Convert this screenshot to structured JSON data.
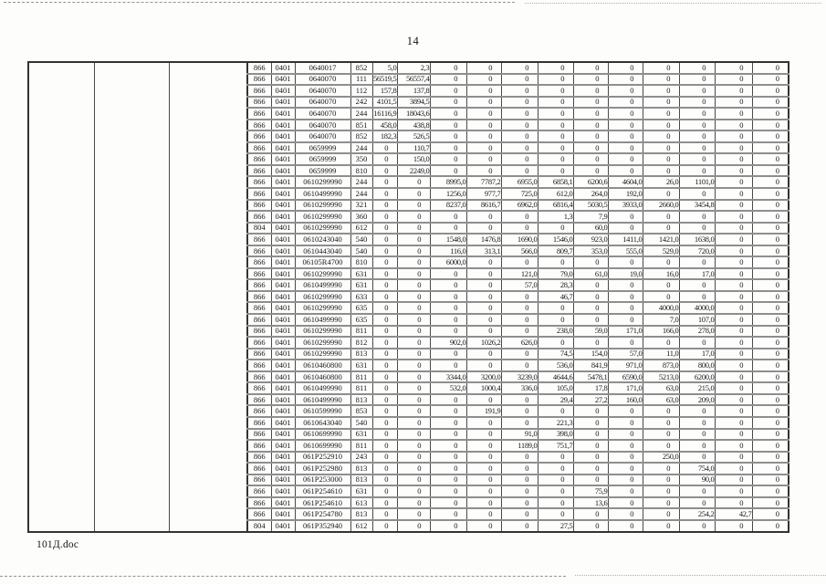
{
  "page": {
    "number": "14",
    "footer_filename": "101Д.doc"
  },
  "table": {
    "rows": [
      [
        "866",
        "0401",
        "0640017",
        "852",
        "5,0",
        "2,3",
        "0",
        "0",
        "0",
        "0",
        "0",
        "0",
        "0",
        "0",
        "0",
        "0"
      ],
      [
        "866",
        "0401",
        "0640070",
        "111",
        "56519,5",
        "56557,4",
        "0",
        "0",
        "0",
        "0",
        "0",
        "0",
        "0",
        "0",
        "0",
        "0"
      ],
      [
        "866",
        "0401",
        "0640070",
        "112",
        "157,8",
        "137,8",
        "0",
        "0",
        "0",
        "0",
        "0",
        "0",
        "0",
        "0",
        "0",
        "0"
      ],
      [
        "866",
        "0401",
        "0640070",
        "242",
        "4101,5",
        "3894,5",
        "0",
        "0",
        "0",
        "0",
        "0",
        "0",
        "0",
        "0",
        "0",
        "0"
      ],
      [
        "866",
        "0401",
        "0640070",
        "244",
        "16116,9",
        "18043,6",
        "0",
        "0",
        "0",
        "0",
        "0",
        "0",
        "0",
        "0",
        "0",
        "0"
      ],
      [
        "866",
        "0401",
        "0640070",
        "851",
        "458,0",
        "438,8",
        "0",
        "0",
        "0",
        "0",
        "0",
        "0",
        "0",
        "0",
        "0",
        "0"
      ],
      [
        "866",
        "0401",
        "0640070",
        "852",
        "182,3",
        "526,5",
        "0",
        "0",
        "0",
        "0",
        "0",
        "0",
        "0",
        "0",
        "0",
        "0"
      ],
      [
        "866",
        "0401",
        "0659999",
        "244",
        "0",
        "110,7",
        "0",
        "0",
        "0",
        "0",
        "0",
        "0",
        "0",
        "0",
        "0",
        "0"
      ],
      [
        "866",
        "0401",
        "0659999",
        "350",
        "0",
        "150,0",
        "0",
        "0",
        "0",
        "0",
        "0",
        "0",
        "0",
        "0",
        "0",
        "0"
      ],
      [
        "866",
        "0401",
        "0659999",
        "810",
        "0",
        "2249,0",
        "0",
        "0",
        "0",
        "0",
        "0",
        "0",
        "0",
        "0",
        "0",
        "0"
      ],
      [
        "866",
        "0401",
        "0610299990",
        "244",
        "0",
        "0",
        "8995,0",
        "7787,2",
        "6955,0",
        "6858,1",
        "6200,6",
        "4604,0",
        "26,0",
        "1101,0",
        "0",
        "0"
      ],
      [
        "866",
        "0401",
        "0610499990",
        "244",
        "0",
        "0",
        "1256,0",
        "977,7",
        "725,0",
        "612,0",
        "264,0",
        "192,0",
        "0",
        "0",
        "0",
        "0"
      ],
      [
        "866",
        "0401",
        "0610299990",
        "321",
        "0",
        "0",
        "8237,0",
        "8616,7",
        "6962,0",
        "6816,4",
        "5030,5",
        "3933,0",
        "2660,0",
        "3454,8",
        "0",
        "0"
      ],
      [
        "866",
        "0401",
        "0610299990",
        "360",
        "0",
        "0",
        "0",
        "0",
        "0",
        "1,3",
        "7,9",
        "0",
        "0",
        "0",
        "0",
        "0"
      ],
      [
        "804",
        "0401",
        "0610299990",
        "612",
        "0",
        "0",
        "0",
        "0",
        "0",
        "0",
        "60,0",
        "0",
        "0",
        "0",
        "0",
        "0"
      ],
      [
        "866",
        "0401",
        "0610243040",
        "540",
        "0",
        "0",
        "1548,0",
        "1476,8",
        "1690,0",
        "1546,0",
        "923,0",
        "1411,0",
        "1421,0",
        "1638,0",
        "0",
        "0"
      ],
      [
        "866",
        "0401",
        "0610443040",
        "540",
        "0",
        "0",
        "116,0",
        "313,1",
        "566,0",
        "809,7",
        "353,0",
        "555,0",
        "529,0",
        "720,0",
        "0",
        "0"
      ],
      [
        "866",
        "0401",
        "06105R4700",
        "810",
        "0",
        "0",
        "6000,0",
        "0",
        "0",
        "0",
        "0",
        "0",
        "0",
        "0",
        "0",
        "0"
      ],
      [
        "866",
        "0401",
        "0610299990",
        "631",
        "0",
        "0",
        "0",
        "0",
        "121,0",
        "79,0",
        "61,0",
        "19,0",
        "16,0",
        "17,0",
        "0",
        "0"
      ],
      [
        "866",
        "0401",
        "0610499990",
        "631",
        "0",
        "0",
        "0",
        "0",
        "57,0",
        "28,3",
        "0",
        "0",
        "0",
        "0",
        "0",
        "0"
      ],
      [
        "866",
        "0401",
        "0610299990",
        "633",
        "0",
        "0",
        "0",
        "0",
        "0",
        "46,7",
        "0",
        "0",
        "0",
        "0",
        "0",
        "0"
      ],
      [
        "866",
        "0401",
        "0610299990",
        "635",
        "0",
        "0",
        "0",
        "0",
        "0",
        "0",
        "0",
        "0",
        "4000,0",
        "4000,0",
        "0",
        "0"
      ],
      [
        "866",
        "0401",
        "0610499990",
        "635",
        "0",
        "0",
        "0",
        "0",
        "0",
        "0",
        "0",
        "0",
        "7,0",
        "107,0",
        "0",
        "0"
      ],
      [
        "866",
        "0401",
        "0610299990",
        "811",
        "0",
        "0",
        "0",
        "0",
        "0",
        "238,0",
        "59,0",
        "171,0",
        "166,0",
        "278,0",
        "0",
        "0"
      ],
      [
        "866",
        "0401",
        "0610299990",
        "812",
        "0",
        "0",
        "902,0",
        "1026,2",
        "626,0",
        "0",
        "0",
        "0",
        "0",
        "0",
        "0",
        "0"
      ],
      [
        "866",
        "0401",
        "0610299990",
        "813",
        "0",
        "0",
        "0",
        "0",
        "0",
        "74,5",
        "154,0",
        "57,0",
        "11,0",
        "17,0",
        "0",
        "0"
      ],
      [
        "866",
        "0401",
        "0610460800",
        "631",
        "0",
        "0",
        "0",
        "0",
        "0",
        "536,0",
        "841,9",
        "971,0",
        "873,0",
        "800,0",
        "0",
        "0"
      ],
      [
        "866",
        "0401",
        "0610460800",
        "811",
        "0",
        "0",
        "3344,0",
        "3200,0",
        "3239,0",
        "4644,6",
        "5478,1",
        "6590,0",
        "5213,0",
        "6200,0",
        "0",
        "0"
      ],
      [
        "866",
        "0401",
        "0610499990",
        "811",
        "0",
        "0",
        "532,0",
        "1000,4",
        "336,0",
        "105,0",
        "17,8",
        "171,0",
        "63,0",
        "215,0",
        "0",
        "0"
      ],
      [
        "866",
        "0401",
        "0610499990",
        "813",
        "0",
        "0",
        "0",
        "0",
        "0",
        "29,4",
        "27,2",
        "160,0",
        "63,0",
        "209,0",
        "0",
        "0"
      ],
      [
        "866",
        "0401",
        "0610599990",
        "853",
        "0",
        "0",
        "0",
        "191,9",
        "0",
        "0",
        "0",
        "0",
        "0",
        "0",
        "0",
        "0"
      ],
      [
        "866",
        "0401",
        "0610643040",
        "540",
        "0",
        "0",
        "0",
        "0",
        "0",
        "221,3",
        "0",
        "0",
        "0",
        "0",
        "0",
        "0"
      ],
      [
        "866",
        "0401",
        "0610699990",
        "631",
        "0",
        "0",
        "0",
        "0",
        "91,0",
        "398,0",
        "0",
        "0",
        "0",
        "0",
        "0",
        "0"
      ],
      [
        "866",
        "0401",
        "0610699990",
        "811",
        "0",
        "0",
        "0",
        "0",
        "1189,0",
        "751,7",
        "0",
        "0",
        "0",
        "0",
        "0",
        "0"
      ],
      [
        "866",
        "0401",
        "061P252910",
        "243",
        "0",
        "0",
        "0",
        "0",
        "0",
        "0",
        "0",
        "0",
        "250,0",
        "0",
        "0",
        "0"
      ],
      [
        "866",
        "0401",
        "061P252980",
        "813",
        "0",
        "0",
        "0",
        "0",
        "0",
        "0",
        "0",
        "0",
        "0",
        "754,0",
        "0",
        "0"
      ],
      [
        "866",
        "0401",
        "061P253000",
        "813",
        "0",
        "0",
        "0",
        "0",
        "0",
        "0",
        "0",
        "0",
        "0",
        "90,0",
        "0",
        "0"
      ],
      [
        "866",
        "0401",
        "061P254610",
        "631",
        "0",
        "0",
        "0",
        "0",
        "0",
        "0",
        "75,9",
        "0",
        "0",
        "0",
        "0",
        "0"
      ],
      [
        "866",
        "0401",
        "061P254610",
        "613",
        "0",
        "0",
        "0",
        "0",
        "0",
        "0",
        "13,6",
        "0",
        "0",
        "0",
        "0",
        "0"
      ],
      [
        "866",
        "0401",
        "061P254780",
        "813",
        "0",
        "0",
        "0",
        "0",
        "0",
        "0",
        "0",
        "0",
        "0",
        "254,2",
        "42,7",
        "0"
      ],
      [
        "804",
        "0401",
        "061P352940",
        "612",
        "0",
        "0",
        "0",
        "0",
        "0",
        "27,5",
        "0",
        "0",
        "0",
        "0",
        "0",
        "0"
      ]
    ]
  }
}
